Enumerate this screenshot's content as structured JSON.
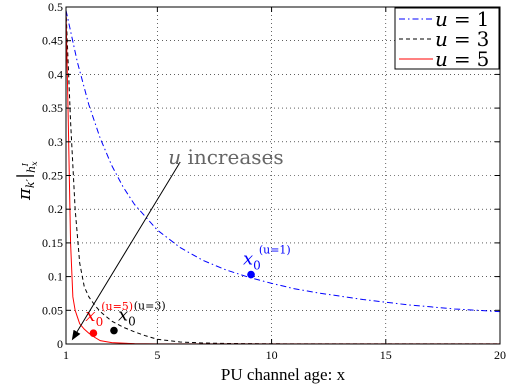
{
  "chart_data": {
    "type": "line",
    "xlabel": "PU channel age: x",
    "ylabel": {
      "main": "π",
      "sub1": "k′",
      "bar": "|",
      "sub2": "h",
      "sub3": "x",
      "sup": "I"
    },
    "xlim": [
      1,
      20
    ],
    "ylim": [
      0,
      0.5
    ],
    "x_ticks": [
      1,
      5,
      10,
      15,
      20
    ],
    "x_tick_labels": [
      "1",
      "5",
      "10",
      "15",
      "20"
    ],
    "y_ticks": [
      0,
      0.05,
      0.1,
      0.15,
      0.2,
      0.25,
      0.3,
      0.35,
      0.4,
      0.45,
      0.5
    ],
    "y_tick_labels": [
      "0",
      "0.05",
      "0.1",
      "0.15",
      "0.2",
      "0.25",
      "0.3",
      "0.35",
      "0.4",
      "0.45",
      "0.5"
    ],
    "grid": true,
    "legend_position": "top-right",
    "series": [
      {
        "name": "u = 1",
        "legend_var": "u",
        "legend_eq": "=",
        "legend_val": "1",
        "color": "#0000ff",
        "style": "dash-dot",
        "x": [
          1,
          1.5,
          2,
          2.5,
          3,
          3.5,
          4,
          5,
          6,
          7,
          8,
          9,
          10,
          11,
          12,
          13,
          14,
          15,
          16,
          17,
          18,
          19,
          20
        ],
        "y": [
          0.495,
          0.418,
          0.355,
          0.305,
          0.265,
          0.233,
          0.207,
          0.169,
          0.143,
          0.124,
          0.11,
          0.099,
          0.09,
          0.082,
          0.076,
          0.071,
          0.066,
          0.062,
          0.058,
          0.055,
          0.052,
          0.05,
          0.048
        ]
      },
      {
        "name": "u = 3",
        "legend_var": "u",
        "legend_eq": "=",
        "legend_val": "3",
        "color": "#000000",
        "style": "dash",
        "x": [
          1,
          1.2,
          1.4,
          1.6,
          1.8,
          2,
          2.25,
          2.5,
          3,
          3.5,
          4,
          4.5,
          5,
          6,
          7,
          8,
          10,
          15,
          20
        ],
        "y": [
          0.495,
          0.33,
          0.2,
          0.12,
          0.085,
          0.07,
          0.058,
          0.048,
          0.034,
          0.025,
          0.018,
          0.012,
          0.007,
          0.003,
          0.0015,
          0.0008,
          0.0003,
          0.0001,
          0.0001
        ]
      },
      {
        "name": "u = 5",
        "legend_var": "u",
        "legend_eq": "=",
        "legend_val": "5",
        "color": "#ff0000",
        "style": "solid",
        "x": [
          1,
          1.1,
          1.2,
          1.3,
          1.4,
          1.5,
          1.6,
          1.8,
          2,
          2.25,
          2.5,
          3,
          4,
          5,
          7,
          10,
          15,
          20
        ],
        "y": [
          0.495,
          0.33,
          0.15,
          0.07,
          0.05,
          0.04,
          0.03,
          0.022,
          0.016,
          0.01,
          0.005,
          0.002,
          0.0005,
          0.0002,
          0.0001,
          0.0001,
          0.0001,
          0.0001
        ]
      }
    ],
    "markers": [
      {
        "x": 9.1,
        "y": 0.103,
        "color": "#0000ff",
        "label_main": "x",
        "label_sub": "0",
        "label_sup": "(u=1)"
      },
      {
        "x": 3.1,
        "y": 0.02,
        "color": "#000000",
        "label_main": "x",
        "label_sub": "0",
        "label_sup": "(u=3)"
      },
      {
        "x": 2.2,
        "y": 0.016,
        "color": "#ff0000",
        "label_main": "x",
        "label_sub": "0",
        "label_sup": "(u=5)"
      }
    ],
    "annotation": {
      "var": "u",
      "text": " increases",
      "color": "#666666",
      "from": [
        6,
        0.27
      ],
      "to": [
        1.3,
        0.008
      ]
    }
  }
}
